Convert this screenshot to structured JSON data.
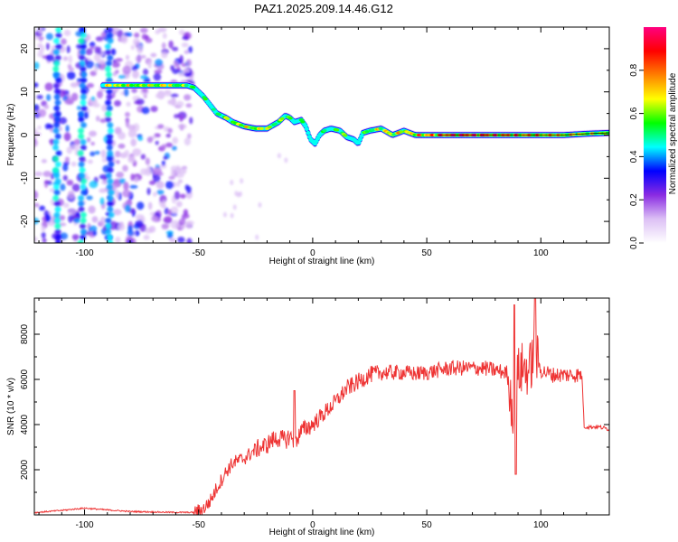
{
  "title": "PAZ1.2025.209.14.46.G12",
  "colors": {
    "snr_line": "#ee3333",
    "frame": "#000000",
    "background": "#ffffff"
  },
  "chart_data": [
    {
      "type": "heatmap",
      "xlabel": "Height of straight line (km)",
      "ylabel": "Frequency (Hz)",
      "xlim": [
        -122,
        130
      ],
      "ylim": [
        -25,
        25
      ],
      "x_ticks": [
        -100,
        -50,
        0,
        50,
        100
      ],
      "y_ticks": [
        -20,
        -10,
        0,
        10,
        20
      ],
      "colorbar": {
        "label": "Normalized spectral amplitude",
        "range": [
          0,
          1
        ],
        "ticks": [
          "0.0",
          "0.2",
          "0.4",
          "0.6",
          "0.8"
        ],
        "tick_values": [
          0,
          0.2,
          0.4,
          0.6,
          0.8
        ],
        "colormap": [
          "#ffffff",
          "#dcc0f5",
          "#8a2be2",
          "#0000ff",
          "#00ffff",
          "#00ff00",
          "#ffff00",
          "#ff8000",
          "#ff0000",
          "#ff0080"
        ]
      },
      "ridge": {
        "x": [
          -92,
          -85,
          -75,
          -65,
          -55,
          -52,
          -48,
          -45,
          -42,
          -38,
          -35,
          -30,
          -25,
          -20,
          -15,
          -12,
          -10,
          -8,
          -5,
          -3,
          -1,
          1,
          3,
          5,
          8,
          12,
          15,
          18,
          20,
          22,
          25,
          30,
          35,
          40,
          45,
          50,
          60,
          70,
          80,
          90,
          100,
          110,
          120,
          130
        ],
        "y": [
          11.5,
          11.5,
          11.5,
          11.5,
          11.5,
          11,
          9,
          7,
          5,
          4,
          3,
          2,
          1.5,
          1.5,
          3,
          4.5,
          4,
          3,
          3.5,
          2,
          -1,
          -2,
          0,
          1,
          1.5,
          1,
          -0.5,
          -1,
          -2,
          0.5,
          1,
          1.5,
          0,
          1,
          0,
          0,
          0,
          0,
          0,
          0,
          0,
          0,
          0.3,
          0.5
        ]
      },
      "ridge_amplitude": [
        0.65,
        0.7,
        0.65,
        0.7,
        0.6,
        0.55,
        0.5,
        0.5,
        0.55,
        0.6,
        0.65,
        0.7,
        0.7,
        0.65,
        0.6,
        0.55,
        0.6,
        0.5,
        0.5,
        0.45,
        0.4,
        0.35,
        0.4,
        0.5,
        0.55,
        0.6,
        0.55,
        0.5,
        0.45,
        0.55,
        0.6,
        0.7,
        0.75,
        0.7,
        0.8,
        0.85,
        0.95,
        1.0,
        0.9,
        0.85,
        0.8,
        0.75,
        0.7,
        0.65
      ],
      "noise_region": [
        -122,
        -53
      ],
      "vertical_streaks": [
        -112,
        -101,
        -89
      ]
    },
    {
      "type": "line",
      "xlabel": "Height of straight line (km)",
      "ylabel": "SNR (10 * v/v)",
      "xlim": [
        -122,
        130
      ],
      "ylim": [
        0,
        9600
      ],
      "x_ticks": [
        -100,
        -50,
        0,
        50,
        100
      ],
      "y_ticks": [
        2000,
        4000,
        6000,
        8000
      ],
      "series": [
        {
          "x": [
            -122,
            -110,
            -100,
            -90,
            -80,
            -70,
            -60,
            -52,
            -48,
            -45,
            -42,
            -38,
            -35,
            -30,
            -25,
            -20,
            -18,
            -15,
            -12,
            -10,
            -8,
            -5,
            -2,
            0,
            5,
            10,
            15,
            20,
            25,
            30,
            35,
            40,
            45,
            50,
            55,
            60,
            65,
            70,
            75,
            80,
            85,
            88,
            90,
            92,
            95,
            97,
            100,
            105,
            110,
            115,
            118,
            119,
            120,
            125,
            130
          ],
          "y": [
            100,
            200,
            300,
            220,
            150,
            130,
            110,
            110,
            250,
            600,
            1200,
            1900,
            2300,
            2500,
            2900,
            3100,
            3300,
            3400,
            3300,
            3500,
            3200,
            3700,
            3900,
            4000,
            4500,
            5000,
            5600,
            5900,
            6200,
            6300,
            6300,
            6300,
            6250,
            6300,
            6400,
            6500,
            6500,
            6500,
            6500,
            6400,
            6300,
            4500,
            6300,
            6500,
            6400,
            7200,
            6400,
            6200,
            6200,
            6200,
            6200,
            3900,
            3900,
            3900,
            3800
          ]
        }
      ]
    }
  ]
}
